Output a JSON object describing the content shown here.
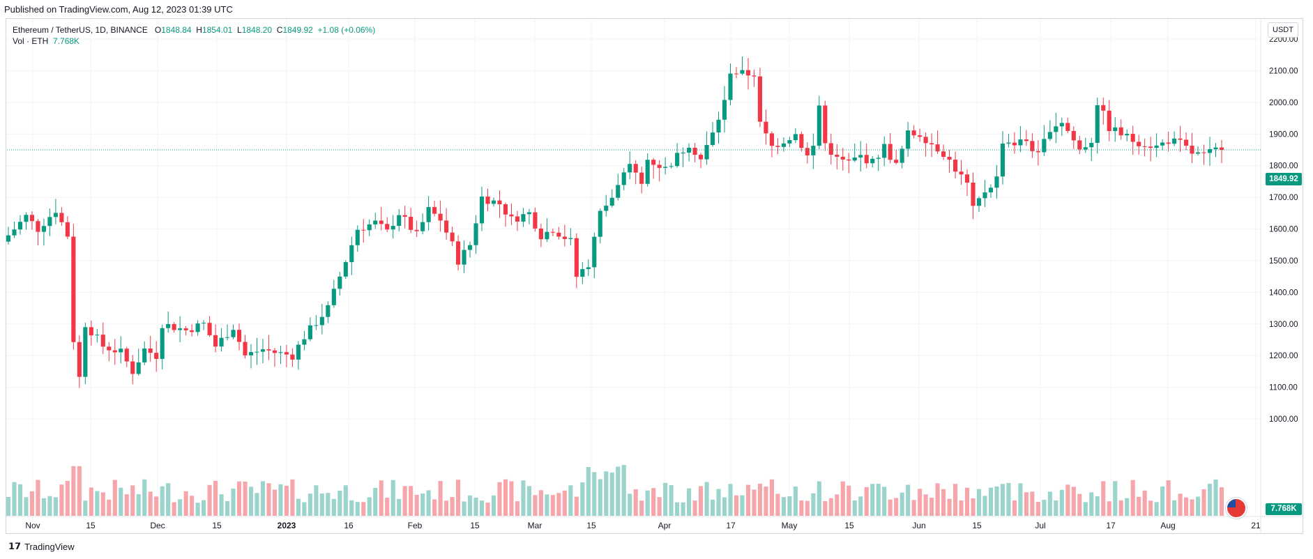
{
  "header": {
    "published": "Published on TradingView.com, Aug 12, 2023 01:39 UTC"
  },
  "legend": {
    "symbol": "Ethereum / TetherUS, 1D, BINANCE",
    "o_label": "O",
    "o": "1848.84",
    "h_label": "H",
    "h": "1854.01",
    "l_label": "L",
    "l": "1848.20",
    "c_label": "C",
    "c": "1849.92",
    "change": "+1.08 (+0.06%)",
    "vol_label": "Vol · ETH",
    "vol": "7.768K"
  },
  "currency_button": "USDT",
  "last_price_tag": "1849.92",
  "volume_tag": "7.768K",
  "footer": {
    "logo_text": "TradingView"
  },
  "colors": {
    "up": "#089981",
    "down": "#f23645",
    "vol_up": "#9bd4cc",
    "vol_down": "#f6a6ab",
    "grid": "#f0f3fa"
  },
  "chart_data": {
    "type": "candlestick",
    "title": "Ethereum / TetherUS, 1D, BINANCE",
    "ylim": [
      950,
      2250
    ],
    "y_ticks": [
      "2200.00",
      "2100.00",
      "2000.00",
      "1900.00",
      "1800.00",
      "1700.00",
      "1600.00",
      "1500.00",
      "1400.00",
      "1300.00",
      "1200.00",
      "1100.00",
      "1000.00"
    ],
    "x_ticks": [
      "Nov",
      "15",
      "Dec",
      "15",
      "2023",
      "16",
      "Feb",
      "15",
      "Mar",
      "15",
      "Apr",
      "17",
      "May",
      "15",
      "Jun",
      "15",
      "Jul",
      "17",
      "Aug",
      "21"
    ],
    "last_price": 1849.92,
    "anchors": [
      [
        0,
        1580
      ],
      [
        3,
        1640
      ],
      [
        5,
        1600
      ],
      [
        8,
        1660
      ],
      [
        10,
        1580
      ],
      [
        11,
        1250
      ],
      [
        12,
        1130
      ],
      [
        13,
        1300
      ],
      [
        16,
        1230
      ],
      [
        19,
        1210
      ],
      [
        21,
        1150
      ],
      [
        23,
        1220
      ],
      [
        25,
        1200
      ],
      [
        26,
        1300
      ],
      [
        30,
        1280
      ],
      [
        33,
        1300
      ],
      [
        35,
        1230
      ],
      [
        38,
        1290
      ],
      [
        40,
        1200
      ],
      [
        43,
        1220
      ],
      [
        45,
        1210
      ],
      [
        48,
        1200
      ],
      [
        50,
        1260
      ],
      [
        54,
        1350
      ],
      [
        57,
        1500
      ],
      [
        59,
        1600
      ],
      [
        62,
        1620
      ],
      [
        64,
        1590
      ],
      [
        66,
        1650
      ],
      [
        69,
        1580
      ],
      [
        71,
        1660
      ],
      [
        73,
        1630
      ],
      [
        75,
        1550
      ],
      [
        76,
        1500
      ],
      [
        78,
        1550
      ],
      [
        80,
        1700
      ],
      [
        83,
        1680
      ],
      [
        85,
        1630
      ],
      [
        88,
        1650
      ],
      [
        90,
        1580
      ],
      [
        92,
        1600
      ],
      [
        95,
        1560
      ],
      [
        96,
        1450
      ],
      [
        98,
        1490
      ],
      [
        100,
        1650
      ],
      [
        102,
        1700
      ],
      [
        105,
        1800
      ],
      [
        107,
        1740
      ],
      [
        108,
        1820
      ],
      [
        111,
        1790
      ],
      [
        113,
        1830
      ],
      [
        115,
        1870
      ],
      [
        117,
        1820
      ],
      [
        119,
        1900
      ],
      [
        121,
        2000
      ],
      [
        122,
        2100
      ],
      [
        124,
        2090
      ],
      [
        126,
        2090
      ],
      [
        127,
        1930
      ],
      [
        129,
        1860
      ],
      [
        131,
        1880
      ],
      [
        133,
        1900
      ],
      [
        135,
        1830
      ],
      [
        136,
        1860
      ],
      [
        137,
        1990
      ],
      [
        138,
        1870
      ],
      [
        140,
        1820
      ],
      [
        142,
        1810
      ],
      [
        144,
        1830
      ],
      [
        146,
        1810
      ],
      [
        148,
        1860
      ],
      [
        150,
        1800
      ],
      [
        152,
        1900
      ],
      [
        154,
        1900
      ],
      [
        156,
        1870
      ],
      [
        158,
        1840
      ],
      [
        160,
        1790
      ],
      [
        162,
        1740
      ],
      [
        163,
        1660
      ],
      [
        165,
        1720
      ],
      [
        167,
        1760
      ],
      [
        168,
        1880
      ],
      [
        170,
        1870
      ],
      [
        172,
        1880
      ],
      [
        174,
        1830
      ],
      [
        176,
        1920
      ],
      [
        178,
        1940
      ],
      [
        180,
        1880
      ],
      [
        181,
        1850
      ],
      [
        183,
        1880
      ],
      [
        184,
        2000
      ],
      [
        186,
        1920
      ],
      [
        188,
        1900
      ],
      [
        190,
        1880
      ],
      [
        192,
        1870
      ],
      [
        194,
        1860
      ],
      [
        196,
        1880
      ],
      [
        198,
        1870
      ],
      [
        200,
        1840
      ],
      [
        202,
        1830
      ],
      [
        204,
        1850
      ],
      [
        205,
        1849.92
      ]
    ],
    "volume_ylim": [
      0,
      1
    ],
    "note_volume": "relative volume bars beneath candles"
  }
}
